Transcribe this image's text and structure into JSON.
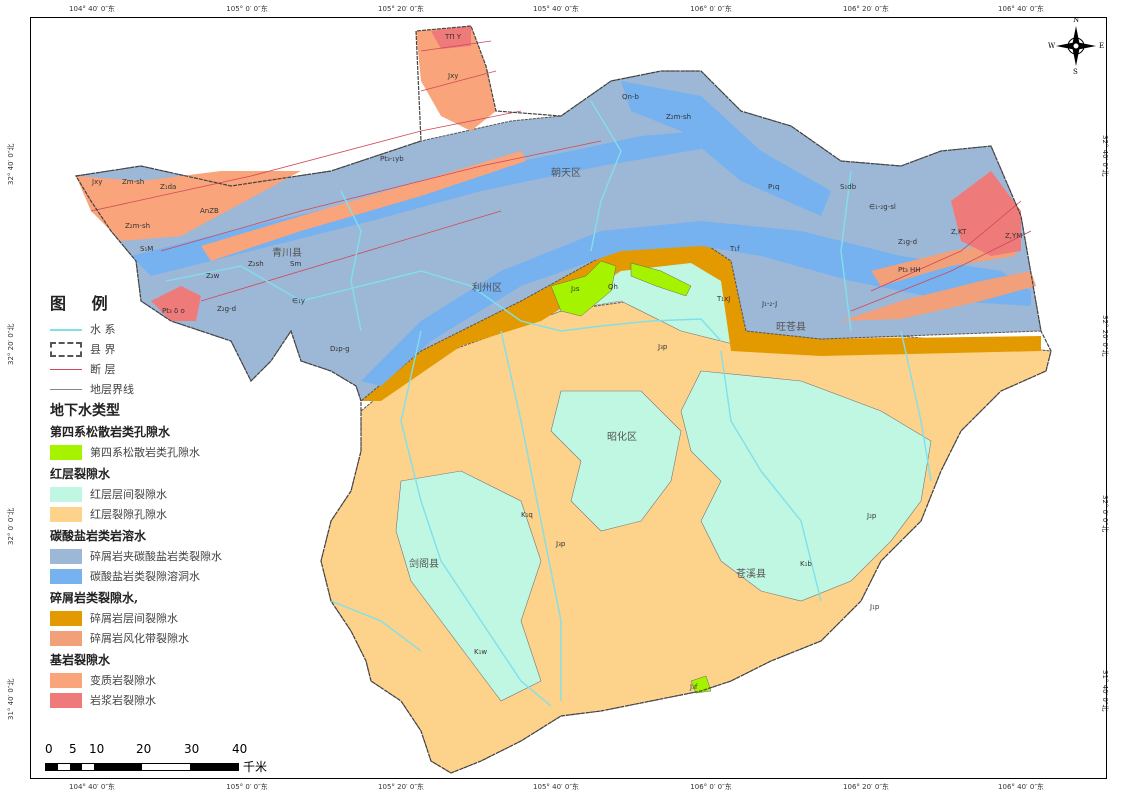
{
  "coords": {
    "top": [
      "104° 40′ 0″东",
      "105° 0′ 0″东",
      "105° 20′ 0″东",
      "105° 40′ 0″东",
      "106° 0′ 0″东",
      "106° 20′ 0″东",
      "106° 40′ 0″东"
    ],
    "left": [
      "32° 40′ 0″北",
      "32° 20′ 0″北",
      "32° 0′ 0″北",
      "31° 40′ 0″北"
    ]
  },
  "compass": {
    "n": "N",
    "s": "S",
    "e": "E",
    "w": "W"
  },
  "counties": [
    "青川县",
    "朝天区",
    "利州区",
    "旺苍县",
    "昭化区",
    "剑阁县",
    "苍溪县"
  ],
  "unit_labels": [
    "TΠ Y",
    "Jxy",
    "Pt₃-₁yb",
    "Zm-sh",
    "Jxy",
    "Z₁da",
    "AnZB",
    "Z₂m-sh",
    "S₁M",
    "Pt₃ δ o",
    "Z₂g-d",
    "Z₂w",
    "Z₂sh",
    "Sm",
    "∈₁y",
    "D₂p-g",
    "Qn-b",
    "Z₂m-sh",
    "P₁q",
    "S₁db",
    "∈₁-₂g-sl",
    "Z₁g-d",
    "Z,KT",
    "Z,YM",
    "Pt₃ HH",
    "T₁f",
    "T₁xJ",
    "J₁-₂-J",
    "J₂s",
    "Qh",
    "J₃p",
    "K₁q",
    "J₃p",
    "K₁w",
    "K₁b",
    "J₂p",
    "J₁p",
    "J₃f"
  ],
  "legend": {
    "title": "图 例",
    "lines": [
      {
        "label": "水 系",
        "color": "#7fe0ec"
      },
      {
        "label": "县 界",
        "color": "#555555"
      },
      {
        "label": "断 层",
        "color": "#d0485a"
      },
      {
        "label": "地层界线",
        "color": "#888888"
      }
    ],
    "groundwater_title": "地下水类型",
    "groups": [
      {
        "title": "第四系松散岩类孔隙水",
        "items": [
          {
            "label": "第四系松散岩类孔隙水",
            "color": "#a6f300"
          }
        ]
      },
      {
        "title": "红层裂隙水",
        "items": [
          {
            "label": "红层层间裂隙水",
            "color": "#bff7e2"
          },
          {
            "label": "红层裂隙孔隙水",
            "color": "#fdd28a"
          }
        ]
      },
      {
        "title": "碳酸盐岩类岩溶水",
        "items": [
          {
            "label": "碎屑岩夹碳酸盐岩类裂隙水",
            "color": "#9db7d6"
          },
          {
            "label": "碳酸盐岩类裂隙溶洞水",
            "color": "#76b1f0"
          }
        ]
      },
      {
        "title": "碎屑岩类裂隙水,",
        "items": [
          {
            "label": "碎屑岩层间裂隙水",
            "color": "#e39a00"
          },
          {
            "label": "碎屑岩风化带裂隙水",
            "color": "#f2a07a"
          }
        ]
      },
      {
        "title": "基岩裂隙水",
        "items": [
          {
            "label": "变质岩裂隙水",
            "color": "#f9a47a"
          },
          {
            "label": "岩浆岩裂隙水",
            "color": "#ef7a7a"
          }
        ]
      }
    ]
  },
  "scale": {
    "ticks": [
      "0",
      "5",
      "10",
      "20",
      "30",
      "40"
    ],
    "unit": "千米"
  }
}
